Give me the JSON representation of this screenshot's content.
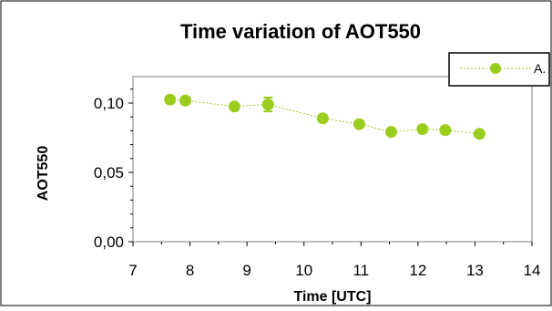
{
  "chart_data": {
    "type": "scatter",
    "title": "Time variation of AOT550",
    "xlabel": "Time [UTC]",
    "ylabel": "AOT550",
    "xlim": [
      7,
      14
    ],
    "ylim": [
      0,
      0.1
    ],
    "x_ticks": [
      7,
      8,
      9,
      10,
      11,
      12,
      13,
      14
    ],
    "x_tick_labels": [
      "7",
      "8",
      "9",
      "10",
      "11",
      "12",
      "13",
      "14"
    ],
    "y_ticks": [
      0,
      0.05,
      0.1
    ],
    "y_tick_labels": [
      "0,00",
      "0,05",
      "0,10"
    ],
    "legend_position": "top-right",
    "grid": false,
    "series": [
      {
        "name": "A.",
        "color": "#9acd1e",
        "x": [
          7.65,
          7.92,
          8.78,
          9.37,
          10.33,
          10.97,
          11.53,
          12.08,
          12.48,
          13.08
        ],
        "y": [
          0.1025,
          0.1018,
          0.0975,
          0.099,
          0.089,
          0.0848,
          0.0792,
          0.0812,
          0.0805,
          0.0778
        ],
        "error": [
          0,
          0,
          0,
          0.005,
          0,
          0,
          0,
          0,
          0,
          0
        ]
      }
    ]
  }
}
